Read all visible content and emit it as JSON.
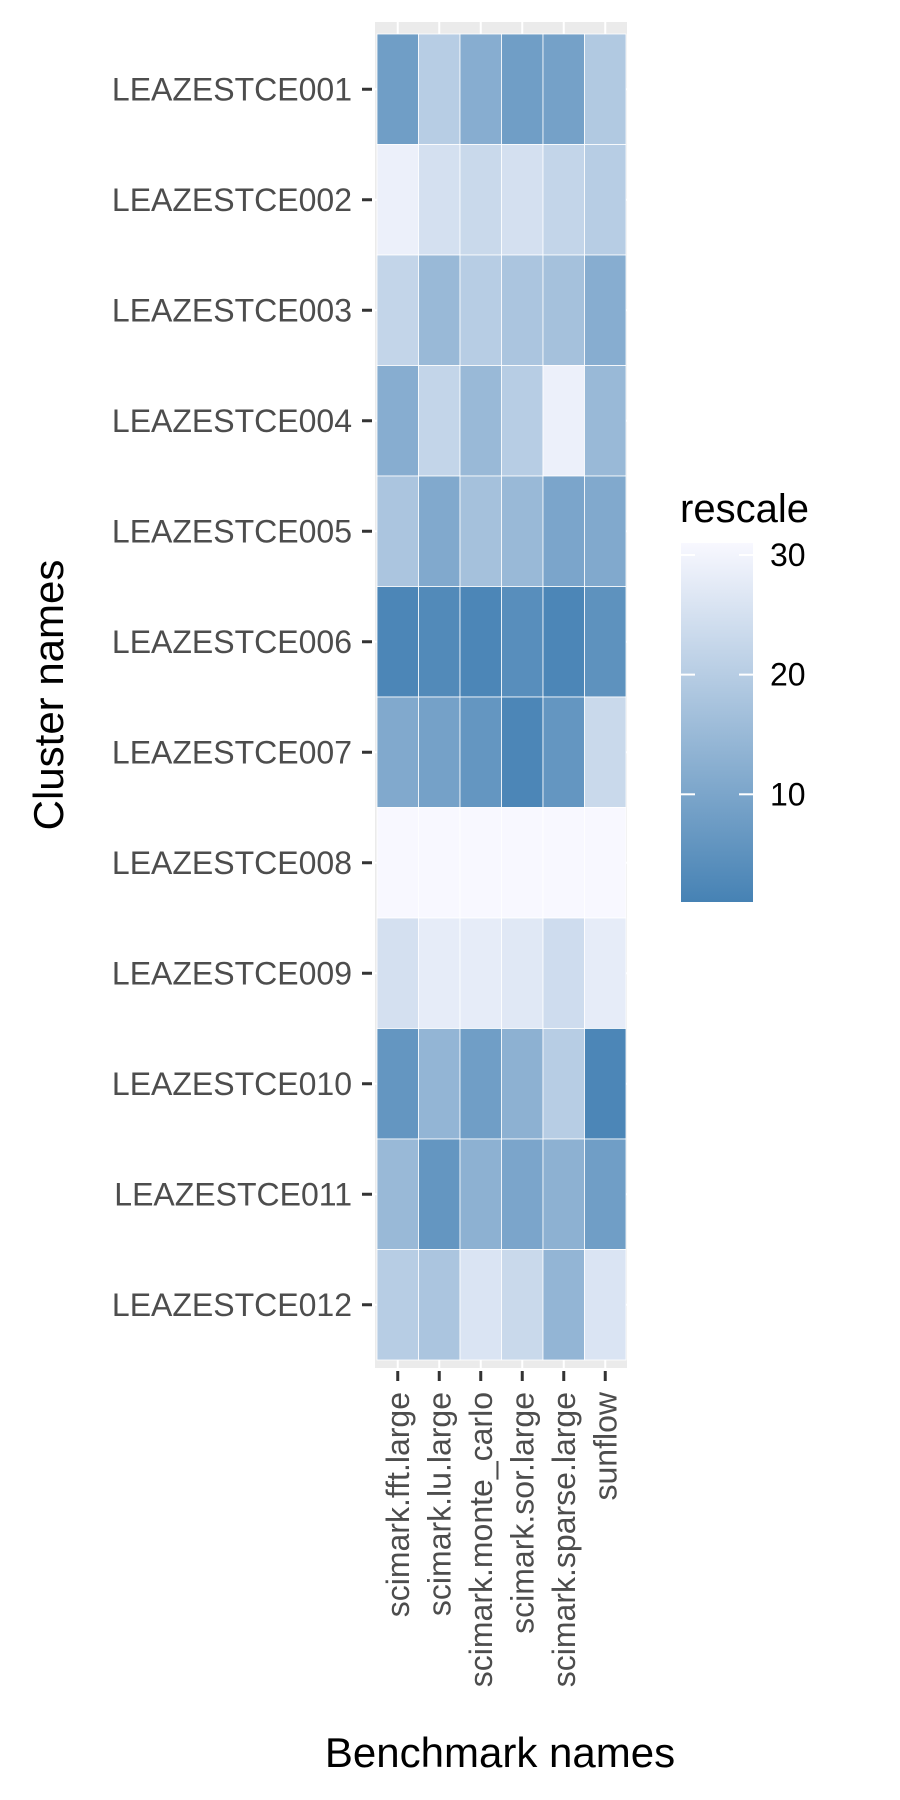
{
  "chart_data": {
    "type": "heatmap",
    "xlabel": "Benchmark names",
    "ylabel": "Cluster names",
    "x": [
      "scimark.fft.large",
      "scimark.lu.large",
      "scimark.monte_carlo",
      "scimark.sor.large",
      "scimark.sparse.large",
      "sunflow"
    ],
    "y": [
      "LEAZESTCE001",
      "LEAZESTCE002",
      "LEAZESTCE003",
      "LEAZESTCE004",
      "LEAZESTCE005",
      "LEAZESTCE006",
      "LEAZESTCE007",
      "LEAZESTCE008",
      "LEAZESTCE009",
      "LEAZESTCE010",
      "LEAZESTCE011",
      "LEAZESTCE012"
    ],
    "values": [
      [
        8,
        20,
        12,
        8,
        9,
        19
      ],
      [
        29,
        25,
        23,
        25,
        22,
        20
      ],
      [
        22,
        15,
        20,
        18,
        17,
        12
      ],
      [
        12,
        22,
        15,
        20,
        29,
        15
      ],
      [
        18,
        11,
        17,
        15,
        10,
        11
      ],
      [
        2,
        3,
        2,
        4,
        2,
        5
      ],
      [
        11,
        9,
        6,
        2,
        6,
        23
      ],
      [
        31,
        31,
        31,
        31,
        31,
        31
      ],
      [
        25,
        28,
        28,
        27,
        24,
        28
      ],
      [
        6,
        14,
        8,
        13,
        20,
        2
      ],
      [
        15,
        6,
        13,
        10,
        13,
        8
      ],
      [
        20,
        18,
        26,
        23,
        14,
        26
      ]
    ],
    "legend": {
      "title": "rescale",
      "ticks": [
        10,
        20,
        30
      ],
      "range": [
        1,
        31
      ],
      "low_color": "#4682b4",
      "high_color": "#f8f8ff",
      "position": "right"
    },
    "colors": {
      "panel_background": "#ebebeb",
      "grid": "#ffffff",
      "tile_border": "#ffffff"
    },
    "grid": true
  }
}
